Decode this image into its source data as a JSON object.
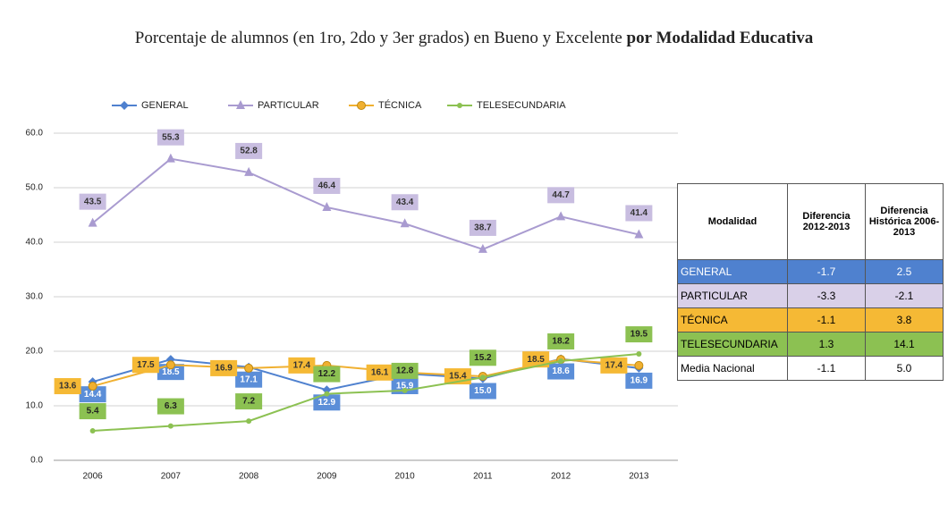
{
  "chart_data": {
    "type": "line",
    "title": "Porcentaje de alumnos (en 1ro, 2do y 3er grados) en Bueno y Excelente",
    "title_emphasis": "por Modalidad Educativa",
    "categories": [
      "2006",
      "2007",
      "2008",
      "2009",
      "2010",
      "2011",
      "2012",
      "2013"
    ],
    "series": [
      {
        "name": "GENERAL",
        "color": "#4f81cf",
        "marker": "diamond",
        "values": [
          14.4,
          18.5,
          17.1,
          12.9,
          15.9,
          15.0,
          18.6,
          16.9
        ],
        "value_labels": [
          "14.4",
          "18.5",
          "17.1",
          "12.9",
          "15.9",
          "15.0",
          "18.6",
          "16.9"
        ]
      },
      {
        "name": "PARTICULAR",
        "color": "#a99bd0",
        "marker": "triangle",
        "values": [
          43.5,
          55.3,
          52.8,
          46.4,
          43.4,
          38.7,
          44.7,
          41.4
        ],
        "value_labels": [
          "43.5",
          "55.3",
          "52.8",
          "46.4",
          "43.4",
          "38.7",
          "44.7",
          "41.4"
        ]
      },
      {
        "name": "TÉCNICA",
        "color": "#f0b030",
        "marker": "circle",
        "values": [
          13.6,
          17.5,
          16.9,
          17.4,
          16.1,
          15.4,
          18.5,
          17.4
        ],
        "value_labels": [
          "13.6",
          "17.5",
          "16.9",
          "17.4",
          "16.1",
          "15.4",
          "18.5",
          "17.4"
        ]
      },
      {
        "name": "TELESECUNDARIA",
        "color": "#8cc152",
        "marker": "dot",
        "values": [
          5.4,
          6.3,
          7.2,
          12.2,
          12.8,
          15.2,
          18.2,
          19.5
        ],
        "value_labels": [
          "5.4",
          "6.3",
          "7.2",
          "12.2",
          "12.8",
          "15.2",
          "18.2",
          "19.5"
        ]
      }
    ],
    "ylim": [
      0,
      60
    ],
    "yticks": [
      {
        "value": 0,
        "label": "0.0"
      },
      {
        "value": 10,
        "label": "10.0"
      },
      {
        "value": 20,
        "label": "20.0"
      },
      {
        "value": 30,
        "label": "30.0"
      },
      {
        "value": 40,
        "label": "40.0"
      },
      {
        "value": 50,
        "label": "50.0"
      },
      {
        "value": 60,
        "label": "60.0"
      }
    ],
    "grid": true,
    "legend": "top"
  },
  "table": {
    "header": [
      "Modalidad",
      "Diferencia 2012-2013",
      "Diferencia Histórica 2006-2013"
    ],
    "rows": [
      [
        "GENERAL",
        "-1.7",
        "2.5"
      ],
      [
        "PARTICULAR",
        "-3.3",
        "-2.1"
      ],
      [
        "TÉCNICA",
        "-1.1",
        "3.8"
      ],
      [
        "TELESECUNDARIA",
        "1.3",
        "14.1"
      ],
      [
        "Media Nacional",
        "-1.1",
        "5.0"
      ]
    ]
  }
}
